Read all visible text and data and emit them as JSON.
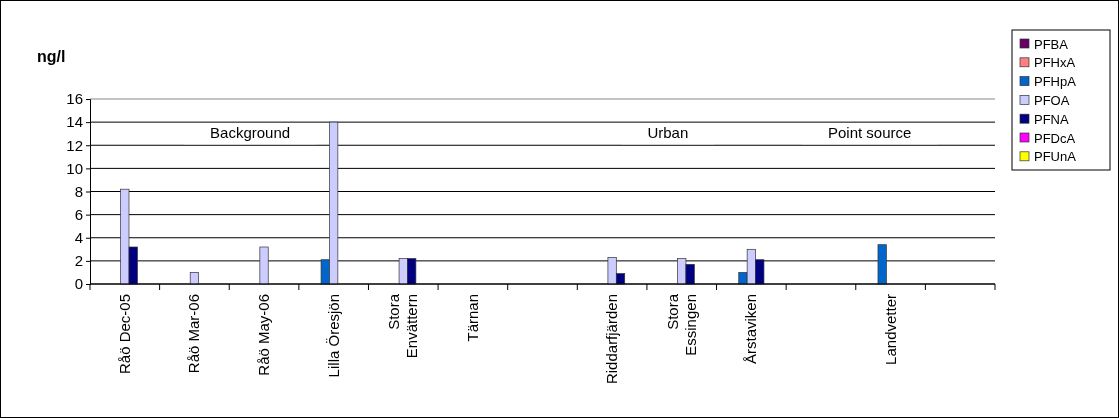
{
  "chart_data": {
    "type": "bar",
    "title": "ng/l",
    "categories": [
      "Råö Dec-05",
      "Råö Mar-06",
      "Råö May-06",
      "Lilla Öresjön",
      "Stora\nEnvättern",
      "Tärnan",
      null,
      "Riddarfjärden",
      "Stora\nEssingen",
      "Årstaviken",
      null,
      "Landvetter",
      null
    ],
    "series": [
      {
        "name": "PFBA",
        "color": "#660066",
        "values": [
          null,
          null,
          null,
          null,
          null,
          null,
          null,
          null,
          null,
          null,
          null,
          null,
          null
        ]
      },
      {
        "name": "PFHxA",
        "color": "#ff8080",
        "values": [
          null,
          null,
          null,
          null,
          null,
          null,
          null,
          null,
          null,
          null,
          null,
          null,
          null
        ]
      },
      {
        "name": "PFHpA",
        "color": "#0066cc",
        "values": [
          null,
          null,
          null,
          2.1,
          null,
          null,
          null,
          null,
          null,
          1.0,
          null,
          3.4,
          null
        ]
      },
      {
        "name": "PFOA",
        "color": "#ccccff",
        "values": [
          8.2,
          1.0,
          3.2,
          14,
          2.2,
          null,
          null,
          2.3,
          2.2,
          3.0,
          null,
          null,
          null
        ]
      },
      {
        "name": "PFNA",
        "color": "#000080",
        "values": [
          3.2,
          null,
          null,
          null,
          2.2,
          null,
          null,
          0.9,
          1.7,
          2.1,
          null,
          null,
          null
        ]
      },
      {
        "name": "PFDcA",
        "color": "#ff00ff",
        "values": [
          null,
          null,
          null,
          null,
          null,
          null,
          null,
          null,
          null,
          null,
          null,
          null,
          null
        ]
      },
      {
        "name": "PFUnA",
        "color": "#ffff00",
        "values": [
          null,
          null,
          null,
          null,
          null,
          null,
          null,
          null,
          null,
          null,
          null,
          null,
          null
        ]
      }
    ],
    "ylim": [
      0,
      16
    ],
    "yticks": [
      0,
      2,
      4,
      6,
      8,
      10,
      12,
      14,
      16
    ],
    "grid": "y",
    "legend": "right",
    "annotations": [
      "Background",
      "Urban",
      "Point source"
    ]
  }
}
